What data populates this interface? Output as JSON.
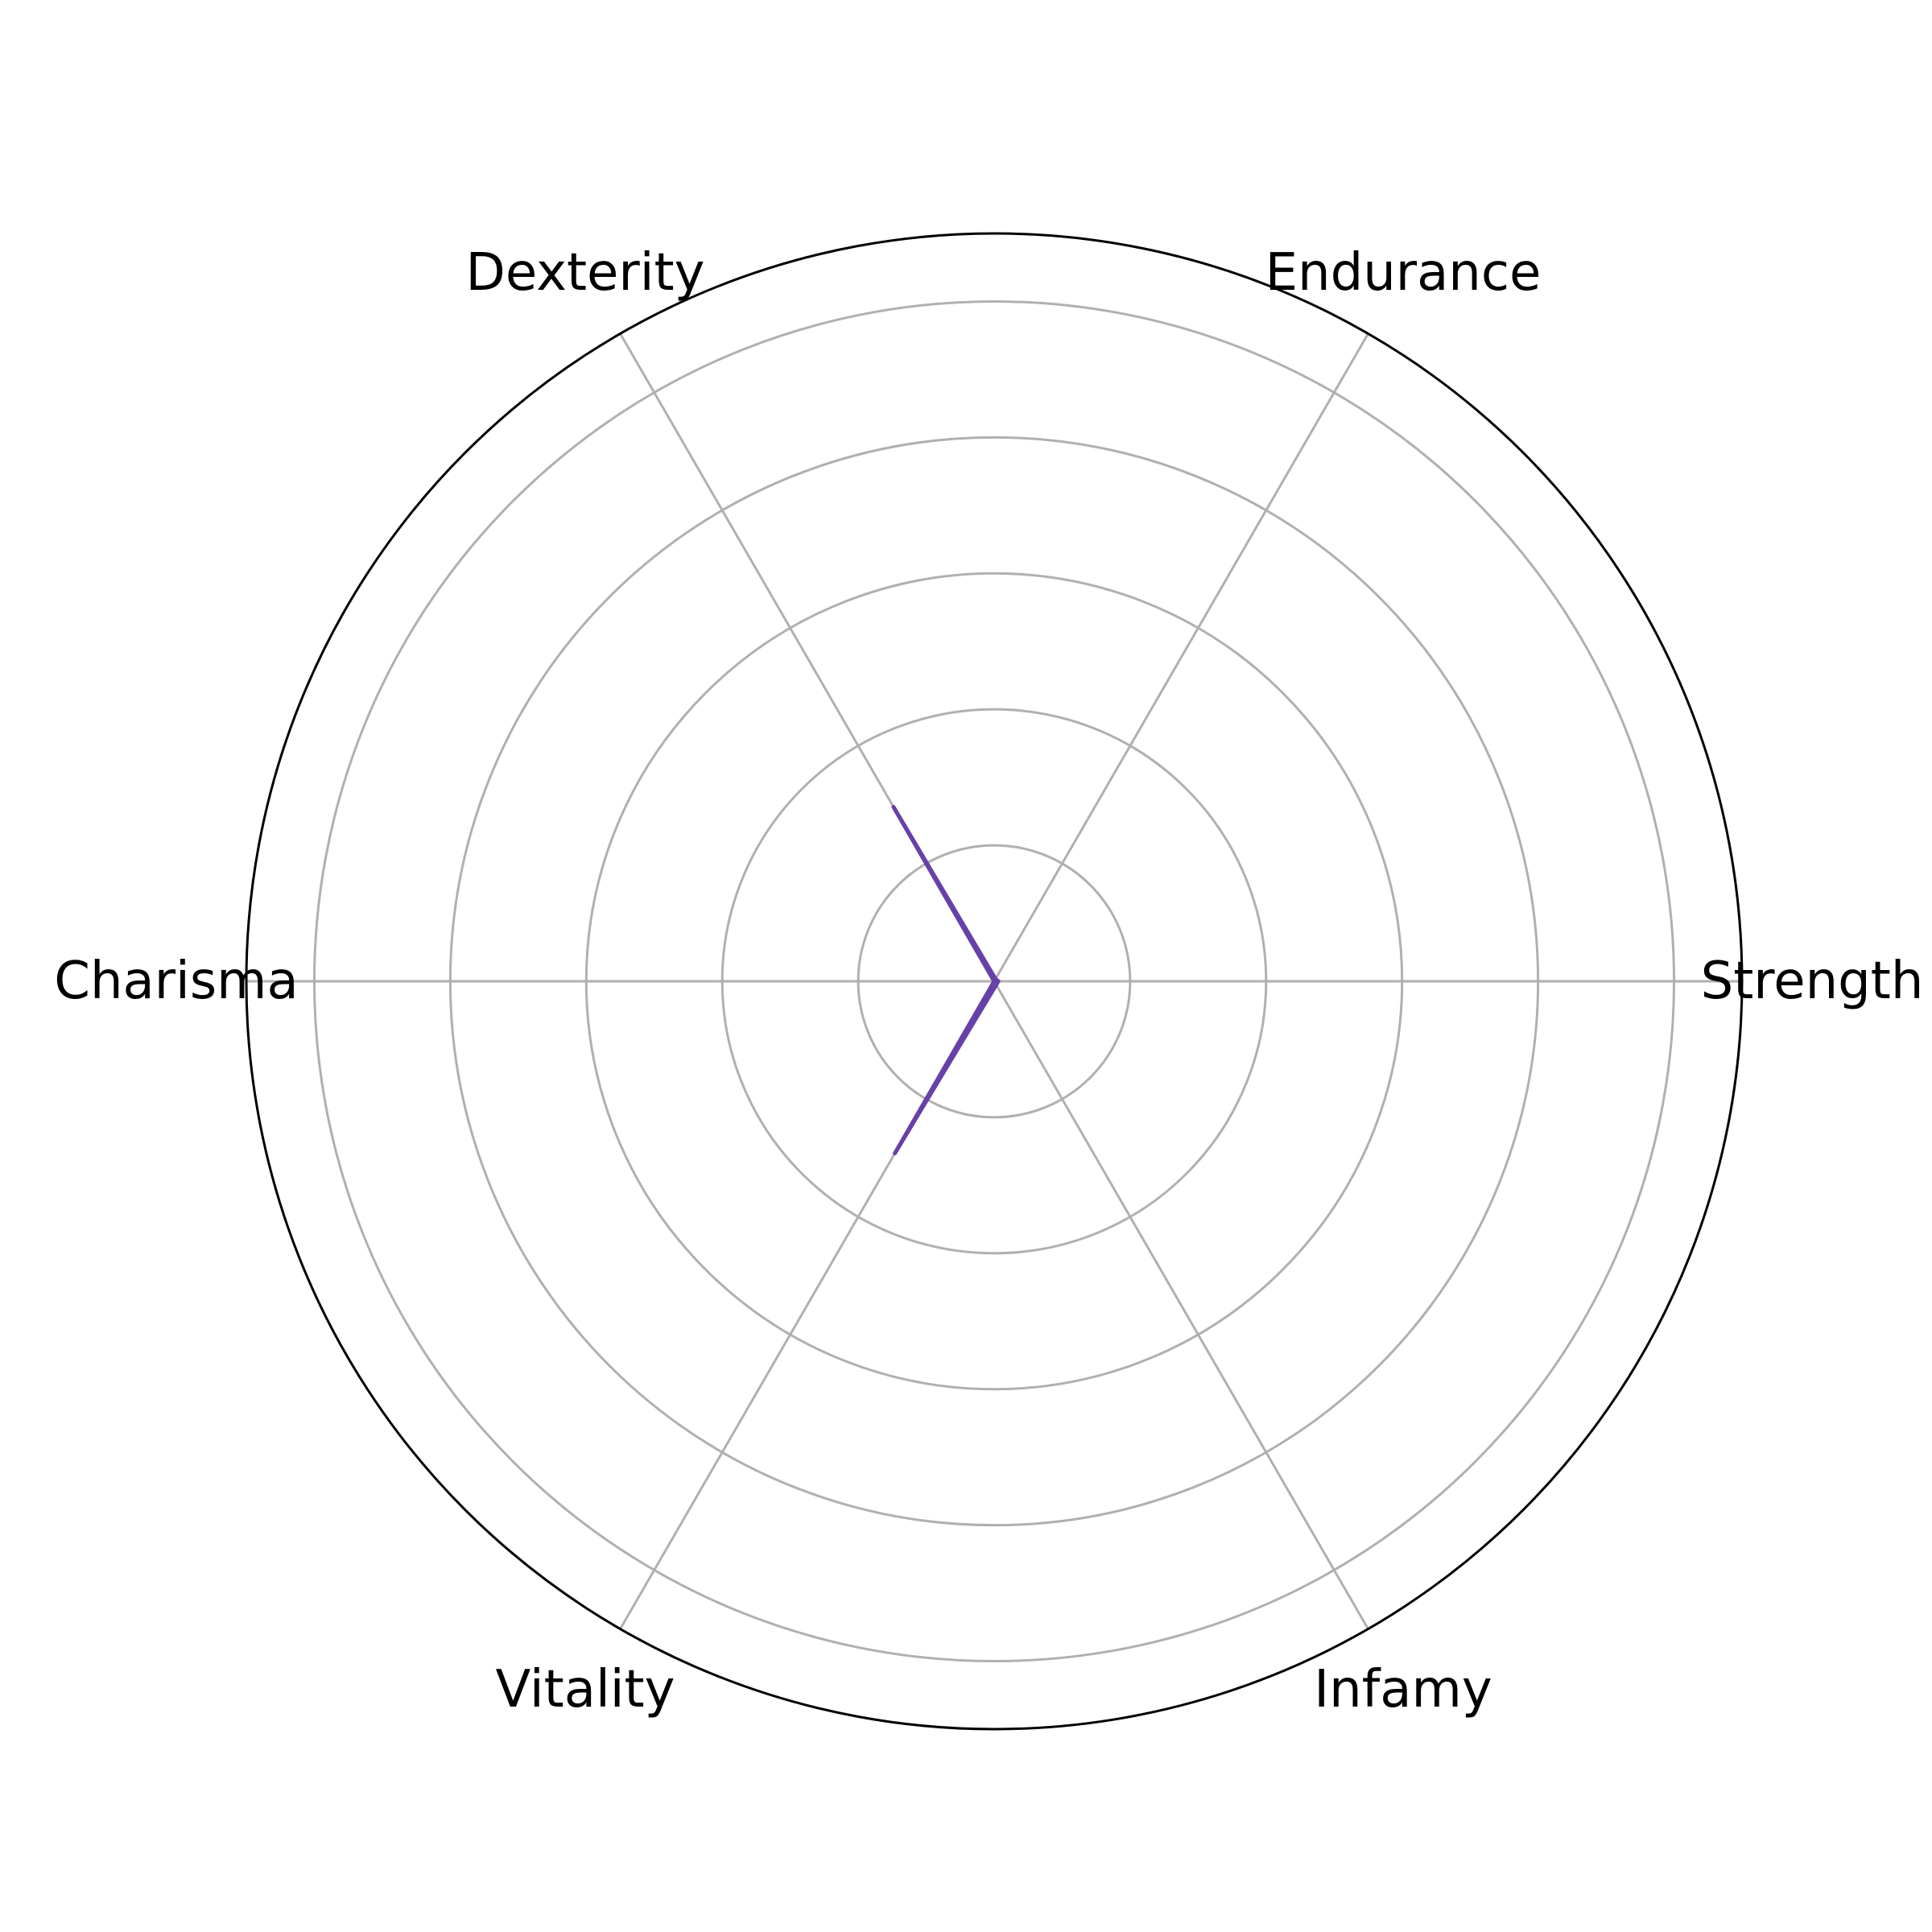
{
  "chart_data": {
    "type": "radar",
    "axes": [
      "Strength",
      "Endurance",
      "Dexterity",
      "Charisma",
      "Vitality",
      "Infamy"
    ],
    "series": [
      {
        "values": [
          0.3,
          0.2,
          14.8,
          0.0,
          14.6,
          0.3
        ],
        "color": "#6741a8"
      }
    ],
    "rlim": [
      0,
      55
    ],
    "grid_rings": [
      10,
      20,
      30,
      40,
      50
    ],
    "grid": true,
    "colors": {
      "grid": "#b0b0b0",
      "frame": "#000000",
      "series": "#6741a8"
    }
  }
}
